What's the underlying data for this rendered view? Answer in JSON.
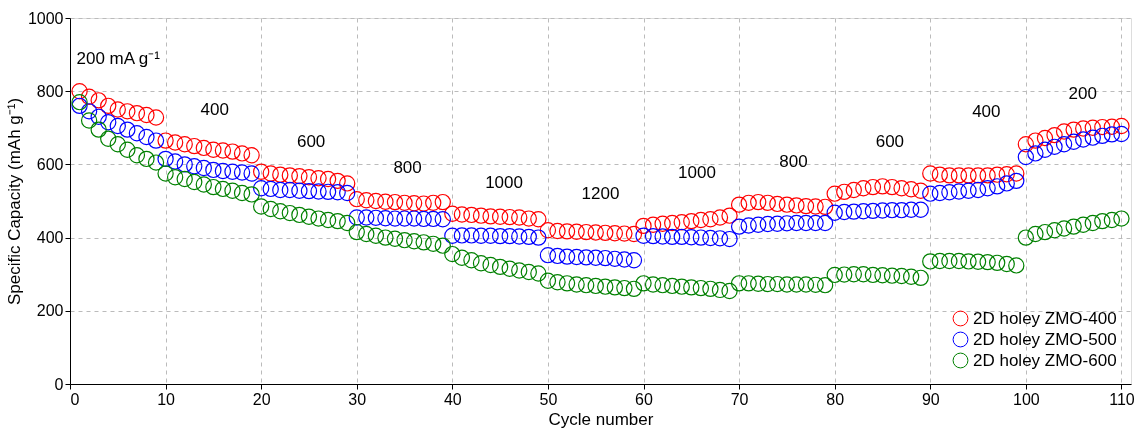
{
  "chart_data": {
    "type": "scatter",
    "xlabel": "Cycle number",
    "ylabel": "Specific Capacity (mAh g⁻¹)",
    "x": [
      1,
      2,
      3,
      4,
      5,
      6,
      7,
      8,
      9,
      10,
      11,
      12,
      13,
      14,
      15,
      16,
      17,
      18,
      19,
      20,
      21,
      22,
      23,
      24,
      25,
      26,
      27,
      28,
      29,
      30,
      31,
      32,
      33,
      34,
      35,
      36,
      37,
      38,
      39,
      40,
      41,
      42,
      43,
      44,
      45,
      46,
      47,
      48,
      49,
      50,
      51,
      52,
      53,
      54,
      55,
      56,
      57,
      58,
      59,
      60,
      61,
      62,
      63,
      64,
      65,
      66,
      67,
      68,
      69,
      70,
      71,
      72,
      73,
      74,
      75,
      76,
      77,
      78,
      79,
      80,
      81,
      82,
      83,
      84,
      85,
      86,
      87,
      88,
      89,
      90,
      91,
      92,
      93,
      94,
      95,
      96,
      97,
      98,
      99,
      100,
      101,
      102,
      103,
      104,
      105,
      106,
      107,
      108,
      109,
      110
    ],
    "series": [
      {
        "name": "2D holey ZMO-400",
        "color": "#ff0000",
        "values": [
          800,
          785,
          775,
          760,
          750,
          745,
          740,
          735,
          728,
          665,
          660,
          655,
          650,
          645,
          640,
          638,
          635,
          630,
          625,
          580,
          575,
          572,
          570,
          568,
          565,
          562,
          560,
          555,
          548,
          505,
          502,
          500,
          498,
          497,
          495,
          494,
          493,
          495,
          497,
          465,
          463,
          462,
          460,
          458,
          457,
          456,
          455,
          452,
          450,
          420,
          418,
          417,
          416,
          415,
          414,
          413,
          412,
          411,
          410,
          432,
          435,
          438,
          440,
          442,
          445,
          448,
          450,
          455,
          460,
          490,
          495,
          497,
          495,
          492,
          490,
          488,
          486,
          485,
          484,
          520,
          525,
          530,
          535,
          538,
          540,
          538,
          535,
          532,
          528,
          575,
          572,
          570,
          570,
          570,
          570,
          570,
          572,
          573,
          575,
          655,
          665,
          672,
          680,
          690,
          695,
          698,
          700,
          702,
          703,
          705
        ]
      },
      {
        "name": "2D holey ZMO-500",
        "color": "#0000ff",
        "values": [
          760,
          745,
          730,
          715,
          705,
          695,
          685,
          675,
          665,
          615,
          608,
          600,
          595,
          590,
          585,
          582,
          580,
          578,
          575,
          535,
          533,
          530,
          530,
          528,
          527,
          526,
          525,
          524,
          522,
          455,
          455,
          454,
          453,
          452,
          452,
          452,
          451,
          451,
          450,
          405,
          406,
          406,
          405,
          405,
          404,
          404,
          403,
          402,
          400,
          352,
          350,
          348,
          347,
          346,
          345,
          344,
          342,
          340,
          338,
          405,
          404,
          403,
          402,
          402,
          401,
          400,
          399,
          398,
          396,
          430,
          433,
          435,
          437,
          438,
          439,
          440,
          440,
          440,
          440,
          468,
          470,
          471,
          472,
          473,
          474,
          475,
          475,
          476,
          476,
          520,
          522,
          524,
          526,
          528,
          530,
          535,
          540,
          548,
          555,
          620,
          630,
          640,
          648,
          655,
          662,
          668,
          673,
          678,
          682,
          683
        ]
      },
      {
        "name": "2D holey ZMO-600",
        "color": "#008000",
        "values": [
          770,
          720,
          695,
          670,
          655,
          640,
          625,
          615,
          605,
          575,
          565,
          560,
          552,
          545,
          538,
          533,
          528,
          522,
          518,
          485,
          478,
          472,
          467,
          462,
          457,
          452,
          448,
          445,
          440,
          415,
          410,
          405,
          400,
          397,
          393,
          390,
          387,
          383,
          378,
          355,
          345,
          338,
          330,
          325,
          320,
          315,
          310,
          306,
          302,
          282,
          278,
          275,
          272,
          270,
          268,
          266,
          264,
          262,
          260,
          275,
          272,
          270,
          268,
          266,
          264,
          262,
          260,
          257,
          254,
          275,
          275,
          274,
          273,
          273,
          272,
          272,
          272,
          271,
          270,
          298,
          299,
          300,
          300,
          298,
          297,
          296,
          295,
          293,
          290,
          335,
          336,
          336,
          336,
          335,
          334,
          333,
          331,
          328,
          324,
          400,
          410,
          415,
          420,
          425,
          430,
          435,
          440,
          445,
          448,
          452
        ]
      }
    ],
    "annotations": [
      "200 mA g⁻¹",
      "400",
      "600",
      "800",
      "1000",
      "1200",
      "1000",
      "800",
      "600",
      "400",
      "200"
    ],
    "xlim": [
      0,
      111
    ],
    "xticks": [
      0,
      10,
      20,
      30,
      40,
      50,
      60,
      70,
      80,
      90,
      100,
      110
    ],
    "ylim": [
      0,
      1000
    ],
    "yticks": [
      0,
      200,
      400,
      600,
      800,
      1000
    ],
    "grid": true,
    "legend": "bottom right",
    "marker": "circle"
  }
}
